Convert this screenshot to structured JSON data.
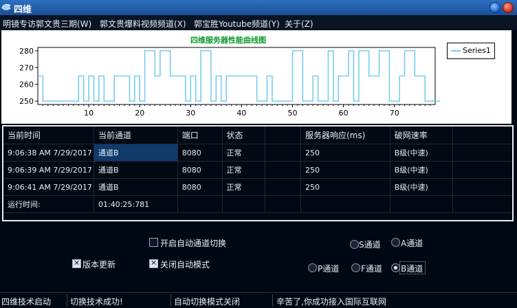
{
  "window": {
    "title": "四维"
  },
  "menu": {
    "items": [
      "明镜专访郭文贵三期(W)",
      "郭文贵爆料视频频道(X)",
      "郭宝胜Youtube频道(Y)",
      "关于(Z)"
    ]
  },
  "chart_data": {
    "type": "line",
    "title": "四维服务器性能曲线图",
    "series": [
      {
        "name": "Series1",
        "color": "#77ccee",
        "values": [
          265,
          250,
          250,
          250,
          250,
          250,
          250,
          250,
          265,
          250,
          265,
          250,
          265,
          250,
          250,
          265,
          265,
          265,
          250,
          265,
          250,
          280,
          280,
          265,
          280,
          280,
          265,
          265,
          265,
          250,
          265,
          250,
          280,
          280,
          250,
          265,
          250,
          265,
          265,
          265,
          265,
          265,
          265,
          250,
          250,
          265,
          250,
          250,
          250,
          250,
          280,
          280,
          250,
          250,
          265,
          250,
          250,
          280,
          250,
          265,
          265,
          280,
          250,
          280,
          280,
          265,
          265,
          280,
          280,
          250,
          250,
          265,
          280,
          280,
          265,
          265,
          250,
          250,
          250
        ]
      }
    ],
    "xticks": [
      10,
      20,
      30,
      40,
      50,
      60,
      70
    ],
    "yticks": [
      250,
      260,
      270,
      280
    ],
    "ylim": [
      248,
      282
    ],
    "xlim": [
      0,
      78
    ]
  },
  "table": {
    "headers": [
      "当前时间",
      "当前通道",
      "端口",
      "状态",
      "",
      "服务器响应(ms)",
      "破网速率",
      ""
    ],
    "rows": [
      [
        "9:06:38 AM 7/29/2017",
        "通道B",
        "8080",
        "正常",
        "",
        "250",
        "B级(中速)",
        ""
      ],
      [
        "9:06:39 AM 7/29/2017",
        "通道B",
        "8080",
        "正常",
        "",
        "250",
        "B级(中速)",
        ""
      ],
      [
        "9:06:41 AM 7/29/2017",
        "通道B",
        "8080",
        "正常",
        "",
        "250",
        "B级(中速)",
        ""
      ],
      [
        "运行时间:",
        "01:40:25:781",
        "",
        "",
        "",
        "",
        "",
        ""
      ]
    ]
  },
  "options": {
    "auto_switch": {
      "label": "开启自动通道切换",
      "checked": false
    },
    "version_update": {
      "label": "版本更新",
      "checked": true
    },
    "close_auto_mode": {
      "label": "关闭自动模式",
      "checked": true
    }
  },
  "channels": {
    "s": {
      "label": "S通道",
      "selected": false
    },
    "a": {
      "label": "A通道",
      "selected": false
    },
    "p": {
      "label": "P通道",
      "selected": false
    },
    "f": {
      "label": "F通道",
      "selected": false
    },
    "b": {
      "label": "B通道",
      "selected": true
    }
  },
  "status": [
    "四维技术启动",
    "切换技术成功!",
    "自动切换模式关闭",
    "辛苦了,你成功接入国际互联网"
  ]
}
